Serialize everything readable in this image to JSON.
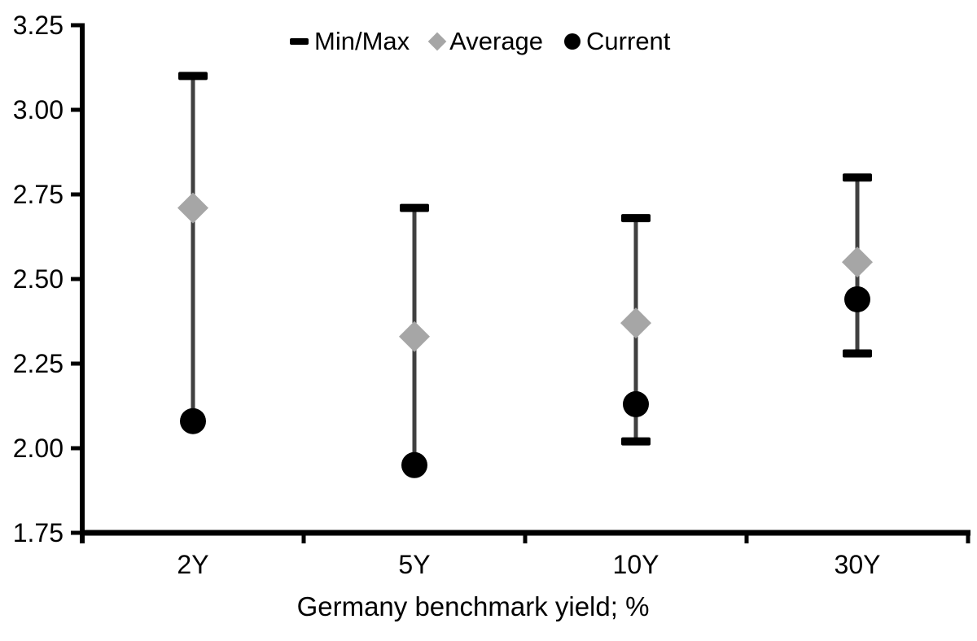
{
  "chart_data": {
    "type": "range-dot-plot",
    "title": "",
    "xlabel": "Germany benchmark yield; %",
    "categories": [
      "2Y",
      "5Y",
      "10Y",
      "30Y"
    ],
    "series": [
      {
        "name": "Min/Max",
        "type": "range",
        "min": [
          2.08,
          1.95,
          2.02,
          2.28
        ],
        "max": [
          3.1,
          2.71,
          2.68,
          2.8
        ]
      },
      {
        "name": "Average",
        "type": "diamond",
        "values": [
          2.71,
          2.33,
          2.37,
          2.55
        ]
      },
      {
        "name": "Current",
        "type": "circle",
        "values": [
          2.08,
          1.95,
          2.13,
          2.44
        ]
      }
    ],
    "ylim": [
      1.75,
      3.25
    ],
    "ytick_step": 0.25,
    "ytick_labels": [
      "1.75",
      "2.00",
      "2.25",
      "2.50",
      "2.75",
      "3.00",
      "3.25"
    ],
    "grid": false,
    "legend_position": "top-center"
  },
  "legend": {
    "items": [
      {
        "label": "Min/Max",
        "marker": "dash"
      },
      {
        "label": "Average",
        "marker": "diamond"
      },
      {
        "label": "Current",
        "marker": "circle"
      }
    ]
  },
  "colors": {
    "black": "#000000",
    "range_line": "#404040",
    "average_gray": "#a6a6a6",
    "text": "#000000",
    "background": "#ffffff"
  }
}
